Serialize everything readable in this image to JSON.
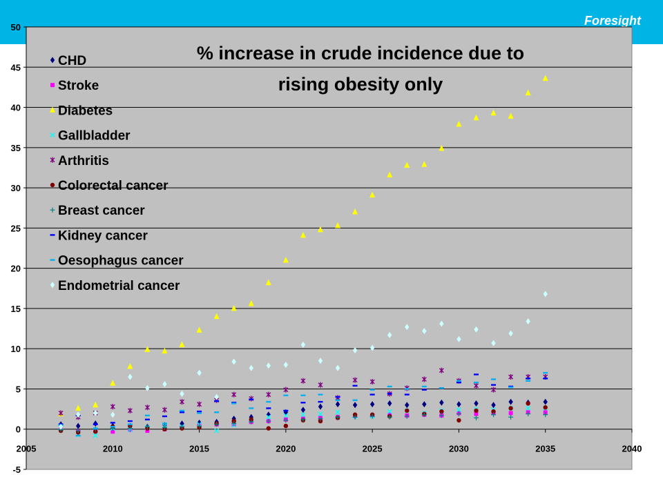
{
  "header": {
    "brand": "Foresight",
    "bar_color": "#00b4e6"
  },
  "chart_data": {
    "type": "scatter",
    "title_lines": [
      "% increase in crude incidence due to",
      "rising obesity only"
    ],
    "xlabel": "",
    "ylabel": "",
    "xlim": [
      2005,
      2040
    ],
    "ylim": [
      -5,
      50
    ],
    "xticks": [
      2005,
      2010,
      2015,
      2020,
      2025,
      2030,
      2035,
      2040
    ],
    "yticks": [
      -5,
      0,
      5,
      10,
      15,
      20,
      25,
      30,
      35,
      40,
      45,
      50
    ],
    "grid": true,
    "plot_background": "#c0c0c0",
    "legend_position": "left",
    "x": [
      2007,
      2008,
      2009,
      2010,
      2011,
      2012,
      2013,
      2014,
      2015,
      2016,
      2017,
      2018,
      2019,
      2020,
      2021,
      2022,
      2023,
      2024,
      2025,
      2026,
      2027,
      2028,
      2029,
      2030,
      2031,
      2032,
      2033,
      2034,
      2035
    ],
    "series": [
      {
        "name": "CHD",
        "marker": "diamond",
        "color": "#000080",
        "values": [
          0.6,
          0.4,
          0.7,
          0.4,
          0.4,
          0.3,
          0.5,
          0.7,
          0.8,
          0.9,
          1.3,
          1.5,
          1.8,
          2.1,
          2.4,
          2.8,
          3.1,
          3.0,
          3.1,
          3.2,
          3.0,
          3.1,
          3.3,
          3.1,
          3.2,
          3.0,
          3.4,
          3.3,
          3.4
        ]
      },
      {
        "name": "Stroke",
        "marker": "square",
        "color": "#ff00ff",
        "values": [
          0.0,
          -0.3,
          -0.2,
          -0.3,
          -0.1,
          -0.2,
          0.0,
          0.2,
          0.4,
          0.6,
          0.6,
          0.9,
          1.0,
          1.2,
          1.3,
          1.4,
          1.5,
          1.6,
          1.7,
          1.8,
          1.7,
          1.8,
          1.7,
          2.0,
          1.9,
          2.0,
          2.0,
          2.1,
          2.1
        ]
      },
      {
        "name": "Diabetes",
        "marker": "triangle",
        "color": "#ffff00",
        "values": [
          1.9,
          2.6,
          3.0,
          5.7,
          7.8,
          9.9,
          9.7,
          10.5,
          12.3,
          14.0,
          15.0,
          15.6,
          18.2,
          21.0,
          24.1,
          24.8,
          25.3,
          27.0,
          29.1,
          31.6,
          32.8,
          32.9,
          34.9,
          37.9,
          38.7,
          39.3,
          38.9,
          41.8,
          43.6
        ]
      },
      {
        "name": "Gallbladder",
        "marker": "x",
        "color": "#00ffff",
        "values": [
          0.2,
          -0.7,
          -0.8,
          0.1,
          -0.1,
          0.2,
          0.4,
          0.3,
          0.6,
          -0.2,
          0.5,
          1.1,
          1.5,
          1.7,
          1.8,
          1.9,
          2.1,
          1.6,
          1.6,
          2.2,
          2.3,
          2.0,
          2.3,
          2.4,
          2.5,
          2.4,
          2.6,
          2.6,
          2.6
        ]
      },
      {
        "name": "Arthritis",
        "marker": "star",
        "color": "#800080",
        "values": [
          2.0,
          1.5,
          2.0,
          2.8,
          2.3,
          2.7,
          2.4,
          3.4,
          3.1,
          3.6,
          4.3,
          3.8,
          4.3,
          4.9,
          6.0,
          5.5,
          3.9,
          6.1,
          5.9,
          4.4,
          5.1,
          6.2,
          7.3,
          6.0,
          5.4,
          4.9,
          6.5,
          6.5,
          6.5
        ]
      },
      {
        "name": "Colorectal cancer",
        "marker": "circle",
        "color": "#800000",
        "values": [
          -0.2,
          -0.4,
          -0.3,
          0.3,
          0.4,
          0.1,
          0.0,
          0.1,
          0.2,
          0.7,
          1.0,
          1.2,
          0.1,
          0.4,
          1.1,
          1.0,
          1.4,
          1.8,
          1.8,
          1.6,
          2.3,
          1.9,
          2.2,
          1.1,
          2.3,
          2.2,
          2.6,
          3.2,
          2.7
        ]
      },
      {
        "name": "Breast cancer",
        "marker": "plus",
        "color": "#008080",
        "values": [
          -0.1,
          -0.2,
          0.0,
          0.1,
          0.1,
          0.3,
          0.2,
          0.3,
          0.4,
          0.6,
          0.7,
          0.9,
          1.0,
          1.1,
          1.2,
          1.3,
          1.5,
          1.5,
          1.6,
          1.5,
          1.6,
          1.8,
          1.7,
          1.9,
          1.4,
          1.8,
          1.5,
          1.9,
          1.8
        ]
      },
      {
        "name": "Kidney cancer",
        "marker": "dash",
        "color": "#0000ff",
        "values": [
          0.6,
          1.7,
          0.6,
          0.8,
          1.0,
          1.2,
          1.6,
          2.1,
          2.2,
          3.5,
          3.3,
          3.7,
          2.6,
          2.3,
          3.3,
          3.4,
          4.0,
          5.4,
          4.3,
          4.4,
          4.3,
          4.9,
          5.1,
          5.8,
          6.8,
          5.5,
          5.3,
          6.3,
          6.3
        ]
      },
      {
        "name": "Oesophagus cancer",
        "marker": "dash",
        "color": "#00b0f0",
        "values": [
          0.5,
          -0.8,
          0.1,
          0.3,
          0.6,
          1.7,
          0.7,
          2.3,
          2.0,
          2.1,
          3.2,
          2.6,
          3.4,
          4.2,
          4.2,
          4.3,
          3.6,
          3.6,
          4.9,
          5.3,
          5.0,
          5.3,
          5.1,
          6.0,
          5.8,
          6.2,
          5.2,
          6.0,
          7.0
        ]
      },
      {
        "name": "Endometrial cancer",
        "marker": "diamond",
        "color": "#ccffff",
        "values": [
          0.3,
          1.8,
          2.0,
          1.8,
          6.5,
          5.1,
          5.6,
          4.4,
          7.0,
          4.0,
          8.4,
          7.6,
          7.9,
          8.0,
          10.5,
          8.5,
          7.6,
          9.8,
          10.1,
          11.7,
          12.7,
          12.2,
          13.1,
          11.2,
          12.4,
          10.7,
          11.9,
          13.4,
          16.8
        ]
      }
    ]
  }
}
